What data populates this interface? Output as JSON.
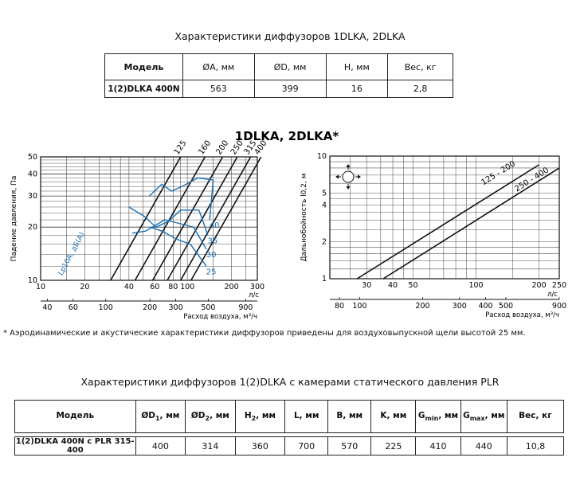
{
  "table1": {
    "title": "Характеристики диффузоров 1DLKA, 2DLKA",
    "headers": [
      "Модель",
      "ØA, мм",
      "ØD, мм",
      "H, мм",
      "Вес, кг"
    ],
    "row": [
      "1(2)DLKA 400N",
      "563",
      "399",
      "16",
      "2,8"
    ]
  },
  "chart_title": "1DLKA, 2DLKA*",
  "note": "* Аэродинамические и акустические характеристики диффузоров приведены для воздуховыпускной щели высотой 25 мм.",
  "table2": {
    "title": "Характеристики диффузоров 1(2)DLKA с камерами статического давления PLR",
    "headers": [
      {
        "main": "Модель",
        "sub": "",
        "tail": ""
      },
      {
        "main": "ØD",
        "sub": "1",
        "tail": ", мм"
      },
      {
        "main": "ØD",
        "sub": "2",
        "tail": ", мм"
      },
      {
        "main": "H",
        "sub": "2",
        "tail": ", мм"
      },
      {
        "main": "L, мм",
        "sub": "",
        "tail": ""
      },
      {
        "main": "B, мм",
        "sub": "",
        "tail": ""
      },
      {
        "main": "K, мм",
        "sub": "",
        "tail": ""
      },
      {
        "main": "G",
        "sub": "min",
        "tail": ", мм"
      },
      {
        "main": "G",
        "sub": "max",
        "tail": ", мм"
      },
      {
        "main": "Вес, кг",
        "sub": "",
        "tail": ""
      }
    ],
    "row": [
      "1(2)DLKA 400N с PLR 315-400",
      "400",
      "314",
      "360",
      "700",
      "570",
      "225",
      "410",
      "440",
      "10,8"
    ]
  },
  "chart_data": [
    {
      "type": "line",
      "xscale": "log",
      "yscale": "log",
      "xlim": [
        10,
        300
      ],
      "ylim": [
        10,
        50
      ],
      "x_ticks": [
        "10",
        "20",
        "40",
        "60",
        "80",
        "100",
        "200",
        "300"
      ],
      "x_unit": "л/с",
      "x2_ticks": [
        "40",
        "60",
        "100",
        "200",
        "300",
        "500",
        "900"
      ],
      "x2_label": "Расход воздуха, м³/ч",
      "y_ticks": [
        "10",
        "20",
        "30",
        "40",
        "50"
      ],
      "ylabel": "Падение давления, Па",
      "series": [
        {
          "name": "125",
          "points": [
            [
              30,
              10
            ],
            [
              90,
              50
            ]
          ]
        },
        {
          "name": "160",
          "points": [
            [
              44,
              10
            ],
            [
              132,
              50
            ]
          ]
        },
        {
          "name": "200",
          "points": [
            [
              58,
              10
            ],
            [
              174,
              50
            ]
          ]
        },
        {
          "name": "250",
          "points": [
            [
              73,
              10
            ],
            [
              219,
              50
            ]
          ]
        },
        {
          "name": "315",
          "points": [
            [
              90,
              10
            ],
            [
              270,
              50
            ]
          ]
        },
        {
          "name": "400",
          "points": [
            [
              106,
              10
            ],
            [
              318,
              50
            ]
          ]
        }
      ],
      "acoustic_label": "Lp10A, дБ(А)",
      "acoustic_series": [
        {
          "name": "25",
          "points": [
            [
              56,
              20
            ],
            [
              67,
              19
            ],
            [
              86,
              17
            ],
            [
              105,
              16
            ],
            [
              135,
              12
            ]
          ]
        },
        {
          "name": "30",
          "points": [
            [
              42,
              18.5
            ],
            [
              52,
              19
            ],
            [
              70,
              22
            ],
            [
              88,
              21
            ],
            [
              110,
              20
            ],
            [
              135,
              15
            ]
          ]
        },
        {
          "name": "35",
          "points": [
            [
              40,
              26
            ],
            [
              51,
              23
            ],
            [
              61,
              20
            ],
            [
              74,
              21.5
            ],
            [
              90,
              25
            ],
            [
              120,
              25
            ],
            [
              138,
              18
            ]
          ]
        },
        {
          "name": "40",
          "points": [
            [
              55,
              30
            ],
            [
              67,
              35
            ],
            [
              78,
              32
            ],
            [
              92,
              34
            ],
            [
              118,
              38
            ],
            [
              150,
              37
            ],
            [
              142,
              22
            ]
          ]
        }
      ]
    },
    {
      "type": "line",
      "xscale": "log",
      "yscale": "log",
      "xlim": [
        20,
        250
      ],
      "ylim": [
        1,
        10
      ],
      "x_ticks": [
        "30",
        "40",
        "50",
        "100",
        "200",
        "250"
      ],
      "x_unit": "л/с",
      "x2_ticks": [
        "80",
        "100",
        "200",
        "300",
        "400",
        "500",
        "900"
      ],
      "x2_label": "Расход воздуха, м³/ч",
      "y_ticks": [
        "1",
        "2",
        "4",
        "5",
        "10"
      ],
      "ylabel": "Дальнобойность l0,2, м",
      "series": [
        {
          "name": "125 - 200",
          "points": [
            [
              27,
              1
            ],
            [
              200,
              8.5
            ]
          ]
        },
        {
          "name": "250 - 400",
          "points": [
            [
              36,
              1
            ],
            [
              250,
              8.0
            ]
          ]
        }
      ]
    }
  ]
}
